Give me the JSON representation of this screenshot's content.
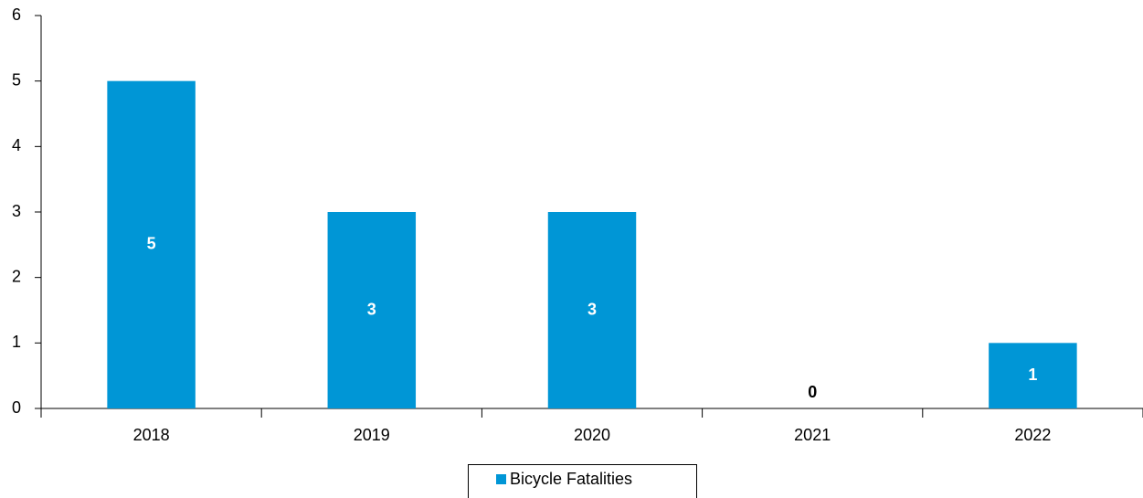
{
  "chart_data": {
    "type": "bar",
    "categories": [
      "2018",
      "2019",
      "2020",
      "2021",
      "2022"
    ],
    "series": [
      {
        "name": "Bicycle Fatalities",
        "color": "#0096d6",
        "values": [
          5,
          3,
          3,
          0,
          1
        ]
      }
    ],
    "ylim": [
      0,
      6
    ],
    "yticks": [
      0,
      1,
      2,
      3,
      4,
      5,
      6
    ],
    "grid": false,
    "legend": "bottom",
    "data_labels": true
  }
}
